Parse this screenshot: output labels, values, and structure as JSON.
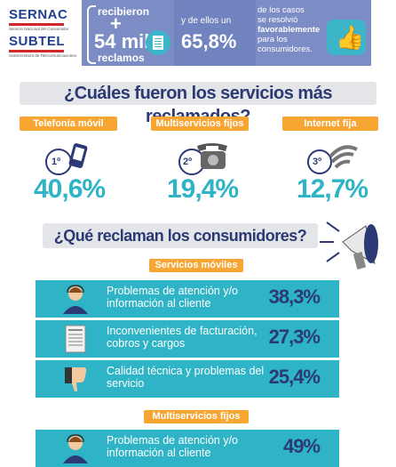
{
  "header": {
    "sernac": {
      "name": "SERNAC",
      "sub": "Servicio Nacional del Consumidor"
    },
    "subtel": {
      "name": "SUBTEL",
      "sub": "Subsecretaría de Telecomunicaciones"
    },
    "recibieron": "recibieron",
    "plus": "+",
    "count": "54 mil",
    "reclamos": "reclamos",
    "ydeellos": "y de ellos un",
    "percent": "65,8%",
    "text1": "de los casos",
    "text2": "se resolvió",
    "text3": "favorablemente",
    "text4": "para los",
    "text5": "consumidores."
  },
  "section1": {
    "title": "¿Cuáles fueron los servicios más reclamados?",
    "items": [
      {
        "label": "Telefonía móvil",
        "rank": "1º",
        "value": "40,6%",
        "icon": "mobile-phone-icon"
      },
      {
        "label": "Multiservicios fijos",
        "rank": "2º",
        "value": "19,4%",
        "icon": "telephone-icon"
      },
      {
        "label": "Internet fija",
        "rank": "3º",
        "value": "12,7%",
        "icon": "wifi-icon"
      }
    ]
  },
  "section2": {
    "title": "¿Qué reclaman los consumidores?",
    "groups": [
      {
        "label": "Servicios móviles",
        "rows": [
          {
            "text": "Problemas de atención y/o información al cliente",
            "value": "38,3%",
            "icon": "call-agent-icon"
          },
          {
            "text": "Inconvenientes de facturación, cobros y cargos",
            "value": "27,3%",
            "icon": "invoice-icon"
          },
          {
            "text": "Calidad técnica y problemas del servicio",
            "value": "25,4%",
            "icon": "thumbs-down-icon"
          }
        ]
      },
      {
        "label": "Multiservicios fijos",
        "rows": [
          {
            "text": "Problemas de atención y/o información al cliente",
            "value": "49%",
            "icon": "call-agent-icon"
          }
        ]
      }
    ]
  },
  "colors": {
    "navy": "#2b3a74",
    "teal": "#2fb3c6",
    "orange": "#f7a533",
    "banner": "#7c8cc5"
  }
}
